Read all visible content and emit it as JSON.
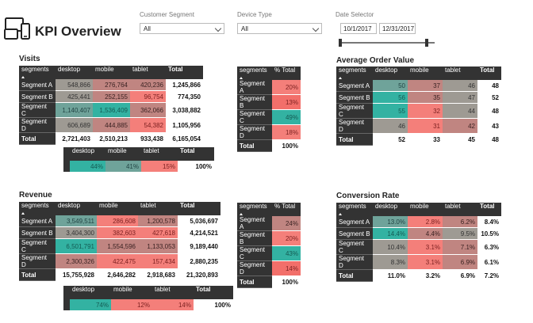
{
  "header": {
    "title": "KPI Overview",
    "icon": "devices-icon"
  },
  "slicers": {
    "segment": {
      "label": "Customer Segment",
      "value": "All"
    },
    "device": {
      "label": "Device Type",
      "value": "All"
    },
    "date": {
      "label": "Date Selector",
      "start": "10/1/2017",
      "end": "12/31/2017"
    }
  },
  "visits": {
    "title": "Visits",
    "headers": [
      "segments",
      "desktop",
      "mobile",
      "tablet",
      "Total"
    ],
    "rows": [
      {
        "label": "Segment A",
        "desktop": "548,866",
        "mobile": "276,764",
        "tablet": "420,236",
        "total": "1,245,866"
      },
      {
        "label": "Segment B",
        "desktop": "425,441",
        "mobile": "252,155",
        "tablet": "96,754",
        "total": "774,350"
      },
      {
        "label": "Segment C",
        "desktop": "1,140,407",
        "mobile": "1,536,409",
        "tablet": "362,066",
        "total": "3,038,882"
      },
      {
        "label": "Segment D",
        "desktop": "606,689",
        "mobile": "444,885",
        "tablet": "54,382",
        "total": "1,105,956"
      }
    ],
    "total": {
      "label": "Total",
      "desktop": "2,721,403",
      "mobile": "2,510,213",
      "tablet": "933,438",
      "total": "6,165,054"
    }
  },
  "visits_share": {
    "headers": [
      "segments",
      "% Total"
    ],
    "rows": [
      {
        "label": "Segment A",
        "value": "20%"
      },
      {
        "label": "Segment B",
        "value": "13%"
      },
      {
        "label": "Segment C",
        "value": "49%"
      },
      {
        "label": "Segment D",
        "value": "18%"
      }
    ],
    "total": {
      "label": "Total",
      "value": "100%"
    }
  },
  "visits_device_share": {
    "headers": [
      "desktop",
      "mobile",
      "tablet",
      "Total"
    ],
    "values": [
      "44%",
      "41%",
      "15%",
      "100%"
    ]
  },
  "aov": {
    "title": "Average Order Value",
    "headers": [
      "segments",
      "desktop",
      "mobile",
      "tablet",
      "Total"
    ],
    "rows": [
      {
        "label": "Segment A",
        "desktop": "50",
        "mobile": "37",
        "tablet": "46",
        "total": "48"
      },
      {
        "label": "Segment B",
        "desktop": "56",
        "mobile": "35",
        "tablet": "47",
        "total": "52"
      },
      {
        "label": "Segment C",
        "desktop": "55",
        "mobile": "32",
        "tablet": "44",
        "total": "48"
      },
      {
        "label": "Segment D",
        "desktop": "46",
        "mobile": "31",
        "tablet": "42",
        "total": "43"
      }
    ],
    "total": {
      "label": "Total",
      "desktop": "52",
      "mobile": "33",
      "tablet": "45",
      "total": "48"
    }
  },
  "revenue": {
    "title": "Revenue",
    "headers": [
      "segments",
      "desktop",
      "mobile",
      "tablet",
      "Total"
    ],
    "rows": [
      {
        "label": "Segment A",
        "desktop": "3,549,511",
        "mobile": "286,608",
        "tablet": "1,200,578",
        "total": "5,036,697"
      },
      {
        "label": "Segment B",
        "desktop": "3,404,300",
        "mobile": "382,603",
        "tablet": "427,618",
        "total": "4,214,521"
      },
      {
        "label": "Segment C",
        "desktop": "6,501,791",
        "mobile": "1,554,596",
        "tablet": "1,133,053",
        "total": "9,189,440"
      },
      {
        "label": "Segment D",
        "desktop": "2,300,326",
        "mobile": "422,475",
        "tablet": "157,434",
        "total": "2,880,235"
      }
    ],
    "total": {
      "label": "Total",
      "desktop": "15,755,928",
      "mobile": "2,646,282",
      "tablet": "2,918,683",
      "total": "21,320,893"
    }
  },
  "revenue_share": {
    "headers": [
      "segments",
      "% Total"
    ],
    "rows": [
      {
        "label": "Segment A",
        "value": "24%"
      },
      {
        "label": "Segment B",
        "value": "20%"
      },
      {
        "label": "Segment C",
        "value": "43%"
      },
      {
        "label": "Segment D",
        "value": "14%"
      }
    ],
    "total": {
      "label": "Total",
      "value": "100%"
    }
  },
  "revenue_device_share": {
    "headers": [
      "desktop",
      "mobile",
      "tablet",
      "Total"
    ],
    "values": [
      "74%",
      "12%",
      "14%",
      "100%"
    ]
  },
  "conversion": {
    "title": "Conversion Rate",
    "headers": [
      "segments",
      "desktop",
      "mobile",
      "tablet",
      "Total"
    ],
    "rows": [
      {
        "label": "Segment A",
        "desktop": "13.0%",
        "mobile": "2.8%",
        "tablet": "6.2%",
        "total": "8.4%"
      },
      {
        "label": "Segment B",
        "desktop": "14.4%",
        "mobile": "4.4%",
        "tablet": "9.5%",
        "total": "10.5%"
      },
      {
        "label": "Segment C",
        "desktop": "10.4%",
        "mobile": "3.1%",
        "tablet": "7.1%",
        "total": "6.3%"
      },
      {
        "label": "Segment D",
        "desktop": "8.3%",
        "mobile": "3.1%",
        "tablet": "6.9%",
        "total": "6.1%"
      }
    ],
    "total": {
      "label": "Total",
      "desktop": "11.0%",
      "mobile": "3.2%",
      "tablet": "6.9%",
      "total": "7.2%"
    }
  },
  "colors": {
    "header_bg": "#333333",
    "high": "#33b2a2",
    "low": "#f47f7a"
  }
}
